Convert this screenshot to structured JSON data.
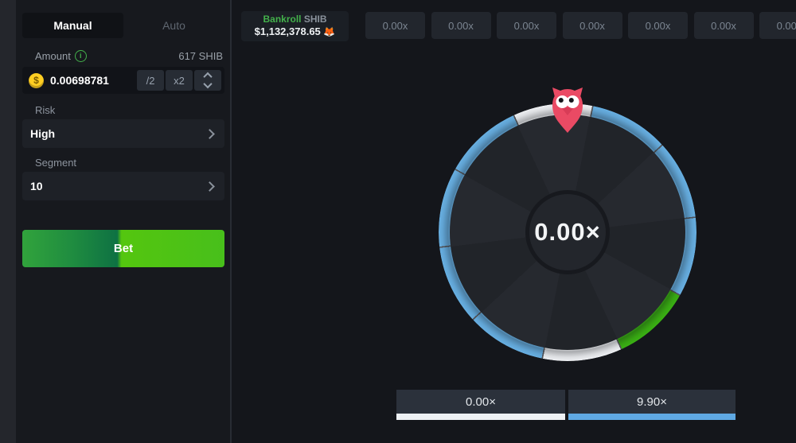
{
  "sidebar": {
    "tabs": [
      {
        "label": "Manual",
        "active": true
      },
      {
        "label": "Auto",
        "active": false
      }
    ],
    "amount": {
      "label": "Amount",
      "info_icon": "i",
      "converted": "617 SHIB",
      "coin_symbol": "$",
      "value": "0.00698781",
      "half": "/2",
      "double": "x2"
    },
    "risk": {
      "label": "Risk",
      "value": "High"
    },
    "segment": {
      "label": "Segment",
      "value": "10"
    },
    "bet_label": "Bet"
  },
  "topbar": {
    "bankroll": {
      "label": "Bankroll",
      "currency": "SHIB",
      "amount": "$1,132,378.65",
      "emoji": "🦊"
    },
    "history": [
      {
        "label": "0.00x"
      },
      {
        "label": "0.00x"
      },
      {
        "label": "0.00x"
      },
      {
        "label": "0.00x"
      },
      {
        "label": "0.00x"
      },
      {
        "label": "0.00x"
      },
      {
        "label": "0.00x"
      }
    ]
  },
  "wheel": {
    "center_label": "0.00×",
    "rotation_deg": -25,
    "segments": [
      "white",
      "blue",
      "blue",
      "blue",
      "green",
      "white",
      "blue",
      "blue",
      "blue",
      "blue"
    ],
    "segment_colors": {
      "white": "#eef0f3",
      "blue": "#68b0e3",
      "green": "#3ab113"
    },
    "separator_color": "rgba(255,255,255,0.28)",
    "pie_colors": [
      "#26292f",
      "#212429"
    ]
  },
  "results": {
    "items": [
      {
        "label": "0.00×",
        "bar_color": "#eef1f4"
      },
      {
        "label": "9.90×",
        "bar_color": "#5fa9e3"
      }
    ]
  }
}
